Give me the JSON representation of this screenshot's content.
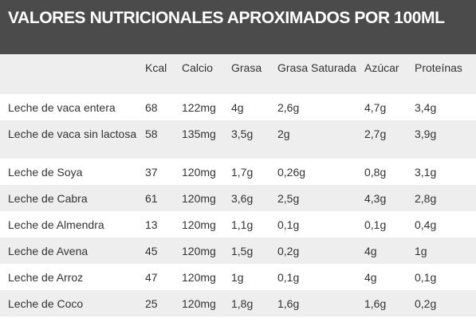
{
  "header": {
    "title": "VALORES NUTRICIONALES APROXIMADOS POR 100ML"
  },
  "table": {
    "columns": [
      "Kcal",
      "Calcio",
      "Grasa",
      "Grasa Saturada",
      "Azúcar",
      "Proteínas"
    ],
    "rows": [
      [
        "Leche de vaca entera",
        "68",
        "122mg",
        "4g",
        "2,6g",
        "4,7g",
        "3,4g"
      ],
      [
        "Leche de vaca sin lactosa",
        "58",
        "135mg",
        "3,5g",
        "2g",
        "2,7g",
        "3,9g"
      ],
      [
        "Leche de Soya",
        "37",
        "120mg",
        "1,7g",
        "0,26g",
        "0,8g",
        "3,1g"
      ],
      [
        "Leche de Cabra",
        "61",
        "120mg",
        "3,6g",
        "2,5g",
        "4,3g",
        "2,8g"
      ],
      [
        "Leche de Almendra",
        "13",
        "120mg",
        "1,1g",
        "0,1g",
        "0,1g",
        "0,4g"
      ],
      [
        "Leche de Avena",
        "45",
        "120mg",
        "1,5g",
        "0,2g",
        "4g",
        "1g"
      ],
      [
        "Leche de Arroz",
        "47",
        "120mg",
        "1g",
        "0,1g",
        "4g",
        "0,1g"
      ],
      [
        "Leche de Coco",
        "25",
        "120mg",
        "1,8g",
        "1,6g",
        "1,6g",
        "0,2g"
      ]
    ]
  }
}
